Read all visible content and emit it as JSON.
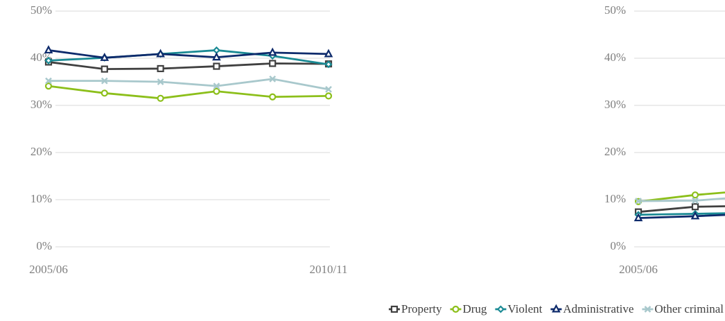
{
  "chart_data": [
    {
      "type": "line",
      "categories": [
        "2005/06",
        null,
        null,
        null,
        null,
        "2010/11"
      ],
      "ylim": [
        0,
        50
      ],
      "yticks": [
        {
          "value": 0,
          "label": "0%"
        },
        {
          "value": 10,
          "label": "10%"
        },
        {
          "value": 20,
          "label": "20%"
        },
        {
          "value": 30,
          "label": "30%"
        },
        {
          "value": 40,
          "label": "40%"
        },
        {
          "value": 50,
          "label": "50%"
        }
      ],
      "grid": true,
      "legend": "bottom-right",
      "series": [
        {
          "name": "Property",
          "color": "#404040",
          "marker": "square",
          "values": [
            39.2,
            37.7,
            37.8,
            38.3,
            38.9,
            38.8
          ]
        },
        {
          "name": "Drug",
          "color": "#8cbf1a",
          "marker": "circle",
          "values": [
            34.1,
            32.6,
            31.5,
            33.0,
            31.8,
            32.0
          ]
        },
        {
          "name": "Violent",
          "color": "#1a8a94",
          "marker": "diamond",
          "values": [
            39.5,
            40.1,
            40.9,
            41.7,
            40.5,
            38.7
          ]
        },
        {
          "name": "Administrative",
          "color": "#0d2a6b",
          "marker": "triangle",
          "values": [
            41.7,
            40.1,
            40.9,
            40.2,
            41.2,
            40.9
          ]
        },
        {
          "name": "Other criminal",
          "color": "#a8c8cc",
          "marker": "x",
          "values": [
            35.2,
            35.2,
            35.0,
            34.1,
            35.6,
            33.4
          ]
        }
      ]
    },
    {
      "type": "line",
      "categories": [
        "2005/06",
        null,
        null
      ],
      "ylim": [
        0,
        50
      ],
      "yticks": [
        {
          "value": 0,
          "label": "0%"
        },
        {
          "value": 10,
          "label": "10%"
        },
        {
          "value": 20,
          "label": "20%"
        },
        {
          "value": 30,
          "label": "30%"
        },
        {
          "value": 40,
          "label": "40%"
        },
        {
          "value": 50,
          "label": "50%"
        }
      ],
      "grid": true,
      "series": [
        {
          "color": "#404040",
          "marker": "square",
          "values": [
            7.4,
            8.5,
            8.7
          ]
        },
        {
          "color": "#8cbf1a",
          "marker": "circle",
          "values": [
            9.6,
            11.0,
            12.0
          ]
        },
        {
          "color": "#1a8a94",
          "marker": "diamond",
          "values": [
            6.8,
            7.0,
            7.2
          ]
        },
        {
          "color": "#0d2a6b",
          "marker": "triangle",
          "values": [
            6.1,
            6.5,
            7.0
          ]
        },
        {
          "color": "#a8c8cc",
          "marker": "x",
          "values": [
            9.7,
            9.8,
            10.7
          ]
        }
      ]
    }
  ]
}
